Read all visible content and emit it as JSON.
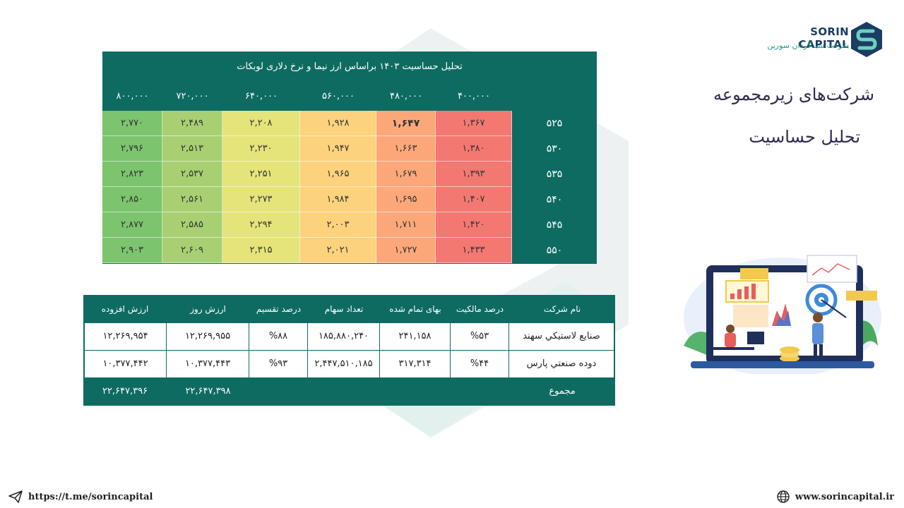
{
  "sensitivity": {
    "title": "تحلیل حساسیت ۱۴۰۳ براساس ارز نیما و نرخ دلاری لوبکات",
    "columns": [
      "۸۰۰,۰۰۰",
      "۷۲۰,۰۰۰",
      "۶۴۰,۰۰۰",
      "۵۶۰,۰۰۰",
      "۴۸۰,۰۰۰",
      "۴۰۰,۰۰۰"
    ],
    "rows": [
      {
        "label": "۵۲۵",
        "values": [
          "۲,۷۷۰",
          "۲,۴۸۹",
          "۲,۲۰۸",
          "۱,۹۲۸",
          "۱,۶۴۷",
          "۱,۳۶۷"
        ]
      },
      {
        "label": "۵۳۰",
        "values": [
          "۲,۷۹۶",
          "۲,۵۱۳",
          "۲,۲۳۰",
          "۱,۹۴۷",
          "۱,۶۶۳",
          "۱,۳۸۰"
        ]
      },
      {
        "label": "۵۳۵",
        "values": [
          "۲,۸۲۳",
          "۲,۵۳۷",
          "۲,۲۵۱",
          "۱,۹۶۵",
          "۱,۶۷۹",
          "۱,۳۹۳"
        ]
      },
      {
        "label": "۵۴۰",
        "values": [
          "۲,۸۵۰",
          "۲,۵۶۱",
          "۲,۲۷۳",
          "۱,۹۸۴",
          "۱,۶۹۵",
          "۱,۴۰۷"
        ]
      },
      {
        "label": "۵۴۵",
        "values": [
          "۲,۸۷۷",
          "۲,۵۸۵",
          "۲,۲۹۴",
          "۲,۰۰۳",
          "۱,۷۱۱",
          "۱,۴۲۰"
        ]
      },
      {
        "label": "۵۵۰",
        "values": [
          "۲,۹۰۳",
          "۲,۶۰۹",
          "۲,۳۱۵",
          "۲,۰۲۱",
          "۱,۷۲۷",
          "۱,۴۳۳"
        ]
      }
    ],
    "highlight": {
      "row": 0,
      "col": 4
    },
    "column_colors": [
      "#7cc46e",
      "#a8d073",
      "#e4e47a",
      "#fdd27d",
      "#fca77a",
      "#f37872"
    ]
  },
  "companies": {
    "headers": {
      "name": "نام شرکت",
      "ownership": "درصد مالکیت",
      "cost": "بهای تمام شده",
      "shares": "تعداد سهام",
      "dividend": "درصد تقسیم",
      "market": "ارزش روز",
      "added": "ارزش افزوده"
    },
    "rows": [
      {
        "name": "صنایع لاستیکي سهند",
        "ownership": "%۵۳",
        "cost": "۲۴۱,۱۵۸",
        "shares": "۱۸۵,۸۸۰,۲۴۰",
        "dividend": "%۸۸",
        "market": "۱۲,۲۶۹,۹۵۵",
        "added": "۱۲,۲۶۹,۹۵۴"
      },
      {
        "name": "دوده صنعتي پارس",
        "ownership": "%۴۴",
        "cost": "۳۱۷,۳۱۴",
        "shares": "۲,۴۴۷,۵۱۰,۱۸۵",
        "dividend": "%۹۳",
        "market": "۱۰,۳۷۷,۴۴۳",
        "added": "۱۰,۳۷۷,۴۴۲"
      }
    ],
    "total": {
      "label": "مجموع",
      "market": "۲۲,۶۴۷,۳۹۸",
      "added": "۲۲,۶۴۷,۳۹۶"
    }
  },
  "heading": {
    "line1": "شرکت‌های زیرمجموعه",
    "line2": "تحلیل حساسیت"
  },
  "logo": {
    "name": "SORIN CAPITAL",
    "subtitle": "شرکت سبدگردان سورین"
  },
  "footer": {
    "telegram": "https://t.me/sorincapital",
    "website": "www.sorincapital.ir"
  },
  "icons": {
    "telegram": "send-icon",
    "website": "globe-icon"
  },
  "brand_colors": {
    "primary": "#0e6b62",
    "navy": "#1b3c63",
    "teal": "#1f9a8a"
  }
}
